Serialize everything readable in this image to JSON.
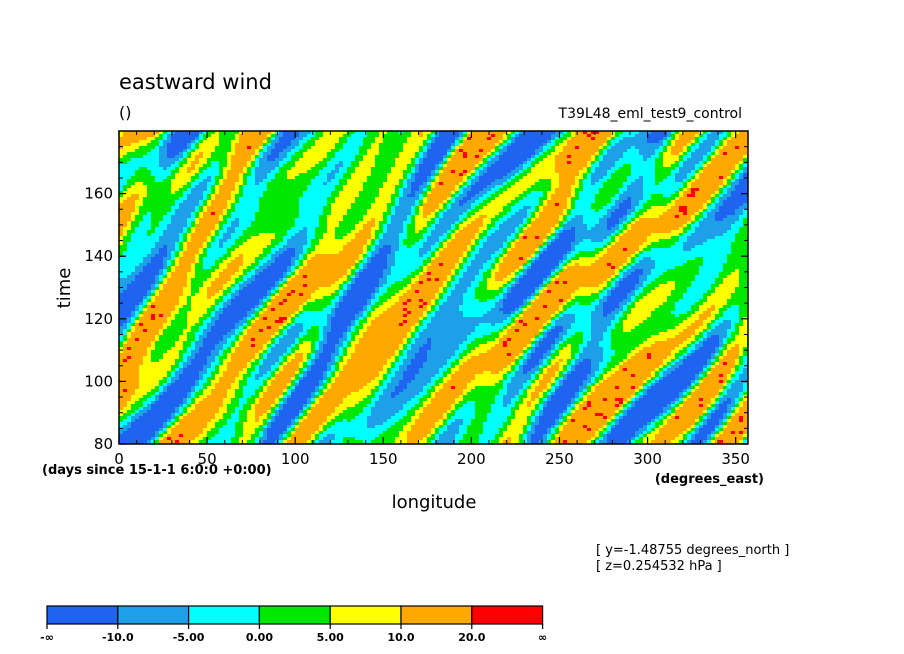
{
  "chart_data": {
    "type": "heatmap",
    "title": "eastward wind",
    "units_label": "()",
    "experiment_label": "T39L48_eml_test9_control",
    "xlabel": "longitude",
    "xunits": "(degrees_east)",
    "ylabel": "time",
    "yunits": "(days since 15-1-1 6:0:0 +0:00)",
    "xlim": [
      0,
      357
    ],
    "ylim": [
      80,
      180
    ],
    "x_ticks": [
      0,
      50,
      100,
      150,
      200,
      250,
      300,
      350
    ],
    "y_ticks": [
      80,
      100,
      120,
      140,
      160
    ],
    "annotations": [
      "[ y=-1.48755 degrees_north ]",
      "[ z=0.254532 hPa ]"
    ],
    "colorbar": {
      "levels": [
        "-∞",
        "-10.0",
        "-5.00",
        "0.00",
        "5.00",
        "10.0",
        "20.0",
        "∞"
      ],
      "colors": [
        "#1f64f0",
        "#1ea0e8",
        "#00ffff",
        "#00e800",
        "#ffff00",
        "#ffa800",
        "#ff0000"
      ]
    },
    "field_note_hidden": false
  }
}
